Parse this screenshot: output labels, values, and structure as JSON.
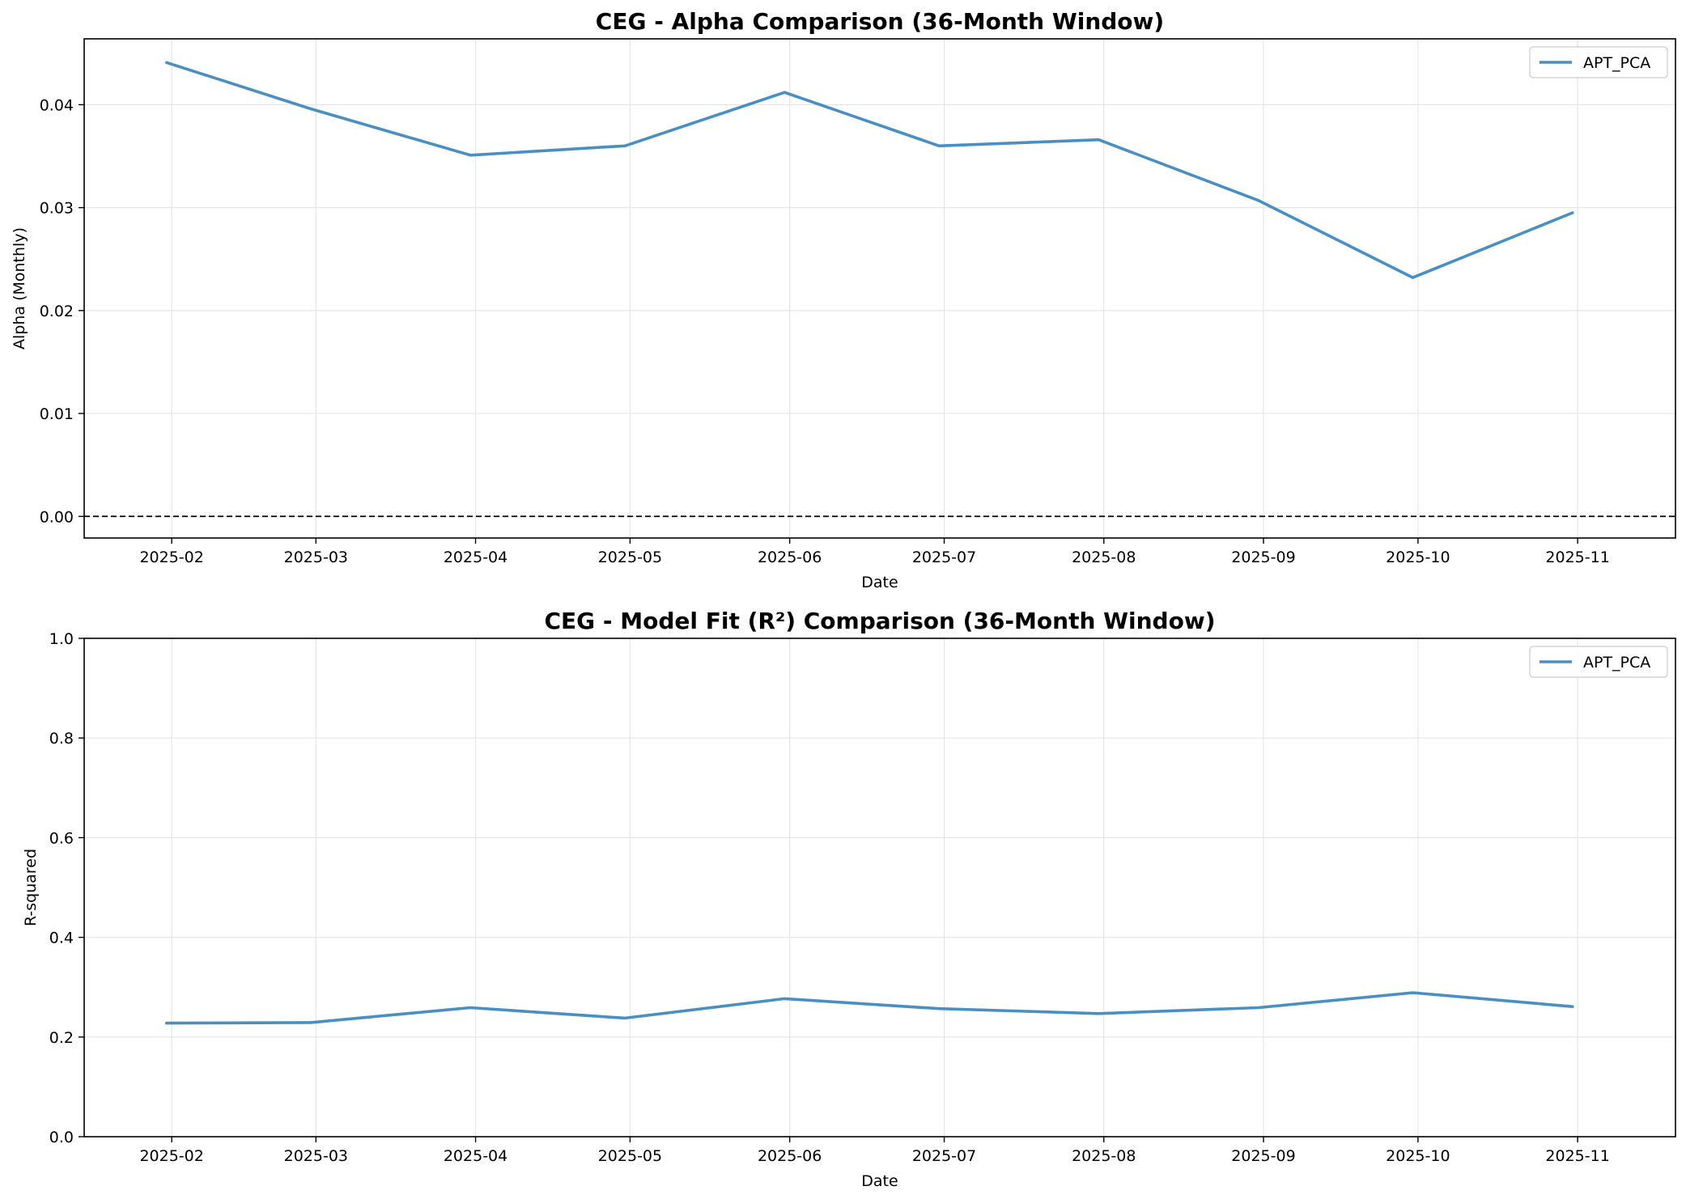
{
  "chart_data": [
    {
      "type": "line",
      "title": "CEG - Alpha Comparison (36-Month Window)",
      "xlabel": "Date",
      "ylabel": "Alpha (Monthly)",
      "x_ticks": [
        "2025-02",
        "2025-03",
        "2025-04",
        "2025-05",
        "2025-06",
        "2025-07",
        "2025-08",
        "2025-09",
        "2025-10",
        "2025-11"
      ],
      "x": [
        "2025-01-31",
        "2025-02-28",
        "2025-03-31",
        "2025-04-30",
        "2025-05-31",
        "2025-06-30",
        "2025-07-31",
        "2025-08-31",
        "2025-09-30",
        "2025-10-31"
      ],
      "xlim": [
        "2025-01-15",
        "2025-11-20"
      ],
      "ylim": [
        -0.0021,
        0.0464
      ],
      "y_ticks": [
        "0.00",
        "0.01",
        "0.02",
        "0.03",
        "0.04"
      ],
      "y_tick_values": [
        0,
        0.01,
        0.02,
        0.03,
        0.04
      ],
      "series": [
        {
          "name": "APT_PCA",
          "color": "#4a8fc2",
          "values": [
            0.0441,
            0.0396,
            0.0351,
            0.036,
            0.0412,
            0.036,
            0.0366,
            0.0307,
            0.0232,
            0.0295
          ]
        }
      ],
      "reference_line": {
        "y": 0,
        "style": "dashed",
        "color": "#000000"
      },
      "grid": true,
      "legend": "top-right"
    },
    {
      "type": "line",
      "title": "CEG - Model Fit (R²) Comparison (36-Month Window)",
      "xlabel": "Date",
      "ylabel": "R-squared",
      "x_ticks": [
        "2025-02",
        "2025-03",
        "2025-04",
        "2025-05",
        "2025-06",
        "2025-07",
        "2025-08",
        "2025-09",
        "2025-10",
        "2025-11"
      ],
      "x": [
        "2025-01-31",
        "2025-02-28",
        "2025-03-31",
        "2025-04-30",
        "2025-05-31",
        "2025-06-30",
        "2025-07-31",
        "2025-08-31",
        "2025-09-30",
        "2025-10-31"
      ],
      "xlim": [
        "2025-01-15",
        "2025-11-20"
      ],
      "ylim": [
        0,
        1
      ],
      "y_ticks": [
        "0.0",
        "0.2",
        "0.4",
        "0.6",
        "0.8",
        "1.0"
      ],
      "y_tick_values": [
        0,
        0.2,
        0.4,
        0.6,
        0.8,
        1.0
      ],
      "series": [
        {
          "name": "APT_PCA",
          "color": "#4a8fc2",
          "values": [
            0.228,
            0.229,
            0.259,
            0.238,
            0.277,
            0.257,
            0.247,
            0.259,
            0.289,
            0.261
          ]
        }
      ],
      "grid": true,
      "legend": "top-right"
    }
  ]
}
